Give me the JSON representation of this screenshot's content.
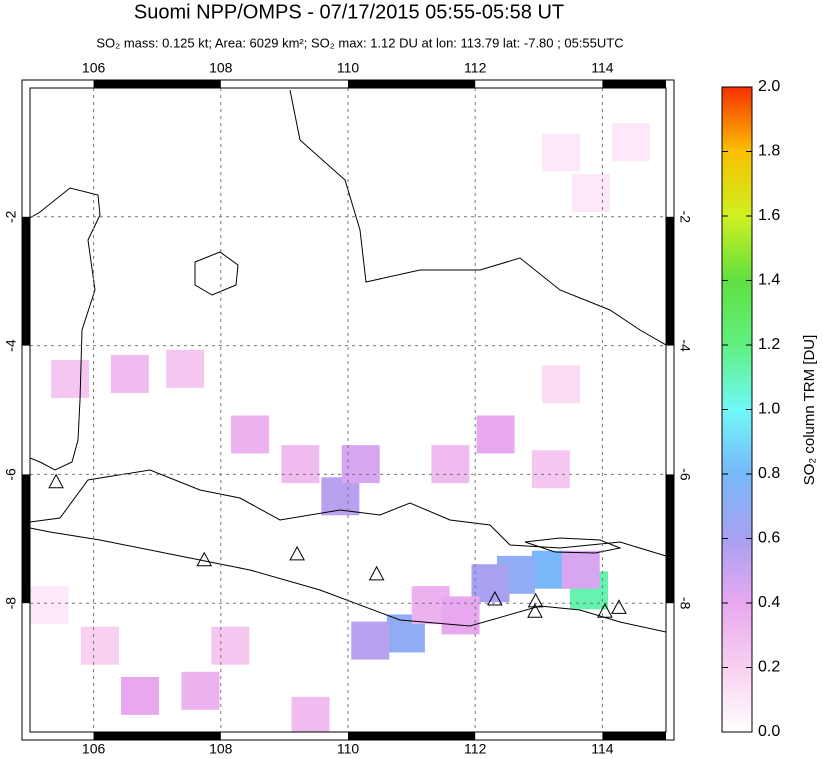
{
  "title": "Suomi NPP/OMPS - 07/17/2015 05:55-05:58 UT",
  "subtitle": "SO₂ mass: 0.125 kt; Area: 6029 km²; SO₂ max: 1.12 DU at lon: 113.79 lat: -7.80 ; 05:55UTC",
  "map": {
    "xlim": [
      105,
      115
    ],
    "ylim": [
      -10,
      0
    ],
    "xticks": [
      106,
      108,
      110,
      112,
      114
    ],
    "yticks": [
      -2,
      -4,
      -6,
      -8
    ],
    "pixels": [
      {
        "lon": 113.79,
        "lat": -7.8,
        "value": 1.12
      },
      {
        "lon": 113.19,
        "lat": -7.48,
        "value": 0.8
      },
      {
        "lon": 112.64,
        "lat": -7.56,
        "value": 0.7
      },
      {
        "lon": 112.24,
        "lat": -7.69,
        "value": 0.6
      },
      {
        "lon": 110.91,
        "lat": -8.47,
        "value": 0.7
      },
      {
        "lon": 110.35,
        "lat": -8.58,
        "value": 0.55
      },
      {
        "lon": 109.88,
        "lat": -6.34,
        "value": 0.55
      },
      {
        "lon": 110.2,
        "lat": -5.84,
        "value": 0.45
      },
      {
        "lon": 112.32,
        "lat": -5.38,
        "value": 0.4
      },
      {
        "lon": 108.46,
        "lat": -5.38,
        "value": 0.35
      },
      {
        "lon": 106.57,
        "lat": -4.44,
        "value": 0.3
      },
      {
        "lon": 105.63,
        "lat": -4.52,
        "value": 0.25
      },
      {
        "lon": 107.44,
        "lat": -4.36,
        "value": 0.25
      },
      {
        "lon": 106.73,
        "lat": -9.44,
        "value": 0.4
      },
      {
        "lon": 107.68,
        "lat": -9.36,
        "value": 0.35
      },
      {
        "lon": 109.41,
        "lat": -9.75,
        "value": 0.3
      },
      {
        "lon": 113.66,
        "lat": -7.48,
        "value": 0.45
      },
      {
        "lon": 109.25,
        "lat": -5.84,
        "value": 0.3
      },
      {
        "lon": 111.61,
        "lat": -5.84,
        "value": 0.3
      },
      {
        "lon": 113.19,
        "lat": -5.92,
        "value": 0.25
      },
      {
        "lon": 111.3,
        "lat": -8.03,
        "value": 0.35
      },
      {
        "lon": 111.77,
        "lat": -8.19,
        "value": 0.4
      },
      {
        "lon": 108.15,
        "lat": -8.66,
        "value": 0.25
      },
      {
        "lon": 113.35,
        "lat": -1.0,
        "value": 0.1
      },
      {
        "lon": 113.82,
        "lat": -1.63,
        "value": 0.1
      },
      {
        "lon": 114.45,
        "lat": -0.84,
        "value": 0.1
      },
      {
        "lon": 113.35,
        "lat": -4.6,
        "value": 0.15
      },
      {
        "lon": 105.31,
        "lat": -8.03,
        "value": 0.1
      },
      {
        "lon": 106.1,
        "lat": -8.66,
        "value": 0.2
      }
    ],
    "volcanoes": [
      {
        "lon": 105.41,
        "lat": -6.13
      },
      {
        "lon": 107.74,
        "lat": -7.34
      },
      {
        "lon": 109.2,
        "lat": -7.25
      },
      {
        "lon": 110.45,
        "lat": -7.56
      },
      {
        "lon": 112.31,
        "lat": -7.95
      },
      {
        "lon": 112.95,
        "lat": -7.98
      },
      {
        "lon": 112.94,
        "lat": -8.14
      },
      {
        "lon": 114.04,
        "lat": -8.14
      },
      {
        "lon": 114.26,
        "lat": -8.08
      }
    ]
  },
  "colorbar": {
    "label": "SO₂ column TRM [DU]",
    "lim": [
      0,
      2
    ],
    "ticks": [
      {
        "value": 0,
        "label": "0.0"
      },
      0.2,
      0.4,
      0.6,
      0.8,
      {
        "value": 1,
        "label": "1.0"
      },
      1.2,
      1.4,
      1.6,
      1.8,
      {
        "value": 2,
        "label": "2.0"
      }
    ],
    "colors": [
      "#ffffff",
      "#f8d0f0",
      "#e8a8f0",
      "#a8a0f0",
      "#78b8f8",
      "#70f8f8",
      "#60f080",
      "#60e040",
      "#d0f020",
      "#f8c000",
      "#f83000"
    ]
  }
}
